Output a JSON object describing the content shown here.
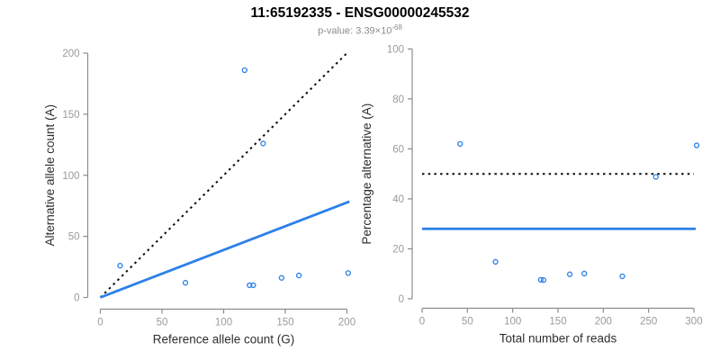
{
  "header": {
    "title": "11:65192335 - ENSG00000245532",
    "p_value_prefix": "p-value: 3.39×10",
    "p_value_exponent": "-68"
  },
  "colors": {
    "accent_blue": "#2b80e8",
    "dotted_black": "#0a0a0a",
    "axis_gray": "#8c8c8c",
    "tick_label_gray": "#9a9a9a",
    "axis_title_dark": "#2e2e2e",
    "subtitle_gray": "#8c8c8c",
    "point_blue": "#2b80e8"
  },
  "chart_data": [
    {
      "type": "scatter",
      "title": "",
      "xlabel": "Reference allele count (G)",
      "ylabel": "Alternative allele count (A)",
      "xlim": [
        0,
        200
      ],
      "ylim": [
        0,
        200
      ],
      "xticks": [
        0,
        50,
        100,
        150,
        200
      ],
      "yticks": [
        0,
        50,
        100,
        150,
        200
      ],
      "grid": false,
      "legend": "none",
      "points": [
        [
          16,
          26
        ],
        [
          69,
          12
        ],
        [
          117,
          186
        ],
        [
          121,
          10
        ],
        [
          124,
          10
        ],
        [
          132,
          126
        ],
        [
          147,
          16
        ],
        [
          161,
          18
        ],
        [
          201,
          20
        ]
      ],
      "lines": [
        {
          "name": "identity-line",
          "style": "dotted",
          "color": "#0a0a0a",
          "from": [
            0,
            0
          ],
          "to": [
            201,
            201
          ]
        },
        {
          "name": "regression-line",
          "style": "solid",
          "color": "#2b80e8",
          "from": [
            0,
            0
          ],
          "to": [
            202,
            78.5
          ]
        }
      ]
    },
    {
      "type": "scatter",
      "title": "",
      "xlabel": "Total number of reads",
      "ylabel": "Percentage alternative (A)",
      "xlim": [
        0,
        300
      ],
      "ylim": [
        0,
        100
      ],
      "xticks": [
        0,
        50,
        100,
        150,
        200,
        250,
        300
      ],
      "yticks": [
        0,
        20,
        40,
        60,
        80,
        100
      ],
      "grid": false,
      "legend": "none",
      "points": [
        [
          42,
          62
        ],
        [
          81,
          14.8
        ],
        [
          131,
          7.6
        ],
        [
          134,
          7.5
        ],
        [
          163,
          9.8
        ],
        [
          179,
          10.1
        ],
        [
          221,
          9
        ],
        [
          258,
          48.8
        ],
        [
          303,
          61.4
        ]
      ],
      "lines": [
        {
          "name": "fifty-percent-line",
          "style": "dotted",
          "color": "#0a0a0a",
          "from": [
            0,
            50
          ],
          "to": [
            300,
            50
          ]
        },
        {
          "name": "mean-percentage-line",
          "style": "solid",
          "color": "#2b80e8",
          "from": [
            0,
            28
          ],
          "to": [
            302,
            28
          ]
        }
      ]
    }
  ]
}
